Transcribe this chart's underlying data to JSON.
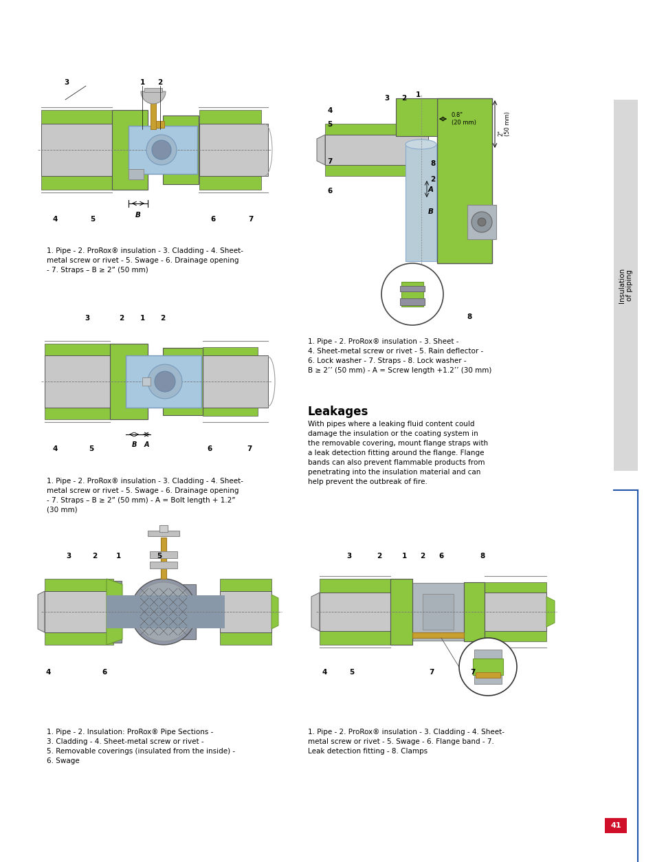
{
  "page_width": 9.54,
  "page_height": 12.54,
  "background_color": "#ffffff",
  "page_number": "41",
  "page_number_bg": "#d0102a",
  "page_number_color": "#ffffff",
  "sidebar_text_line1": "Insulation",
  "sidebar_text_line2": "of piping",
  "sidebar_bg": "#d8d8d8",
  "blue_line_color": "#2255aa",
  "caption1_parts": [
    {
      "text": "1. Pipe - 2. ",
      "bold": false
    },
    {
      "text": "ProRox",
      "bold": true
    },
    {
      "text": "®",
      "bold": false
    },
    {
      "text": " insulation - 3. Cladding - 4. Sheet-\nmetal screw or rivet - 5. Swage - 6. Drainage opening\n- 7. Straps – B ≥ 2” (50 mm)",
      "bold": false
    }
  ],
  "caption1": "1. Pipe - 2. ProRox® insulation - 3. Cladding - 4. Sheet-\nmetal screw or rivet - 5. Swage - 6. Drainage opening\n- 7. Straps – B ≥ 2’’ (50 mm)",
  "caption2": "1. Pipe - 2. ProRox® insulation - 3. Cladding - 4. Sheet-\nmetal screw or rivet - 5. Swage - 6. Drainage opening\n- 7. Straps – B ≥ 2’’ (50 mm) - A = Bolt length + 1.2’’\n(30 mm)",
  "caption3_lines": [
    "1. Pipe - 2. Insulation: ProRox® Pipe Sections -",
    "3. Cladding - 4. Sheet-metal screw or rivet -",
    "5. Removable coverings (insulated from the inside) -",
    "6. Swage"
  ],
  "caption4_lines": [
    "1. Pipe - 2. ProRox® insulation - 3. Sheet -",
    "4. Sheet-metal screw or rivet - 5. Rain deflector -",
    "6. Lock washer - 7. Straps - 8. Lock washer -",
    "B ≥ 2’’ (50 mm) - A = Screw length +1.2’’ (30 mm)"
  ],
  "caption5_lines": [
    "1. Pipe - 2. ProRox® insulation - 3. Cladding - 4. Sheet-",
    "metal screw or rivet - 5. Swage - 6. Flange band - 7.",
    "Leak detection fitting - 8. Clamps"
  ],
  "leakages_title": "Leakages",
  "leakages_body_lines": [
    "With pipes where a leaking fluid content could",
    "damage the insulation or the coating system in",
    "the removable covering, mount flange straps with",
    "a leak detection fitting around the flange. Flange",
    "bands can also prevent flammable products from",
    "penetrating into the insulation material and can",
    "help prevent the outbreak of fire."
  ],
  "green": "#8dc63f",
  "gray_pipe": "#c8c8c8",
  "gray_dark": "#999999",
  "blue_ins": "#a8c8e0",
  "gold": "#c8a030",
  "white": "#ffffff",
  "line_color": "#555555"
}
